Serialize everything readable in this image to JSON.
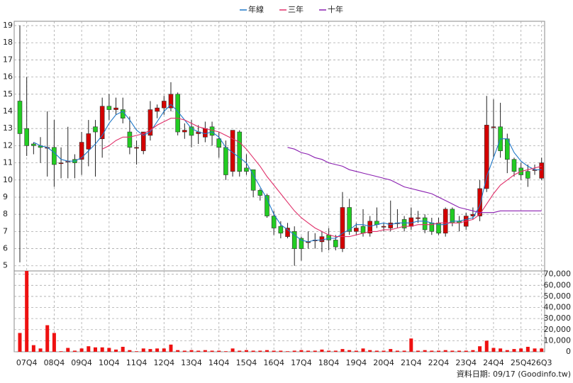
{
  "chart_data": {
    "type": "candlestick",
    "legend": "top",
    "grid": true,
    "up_color": "#d40000",
    "down_color": "#22cc22",
    "categories": [
      null,
      "07Q4",
      null,
      null,
      null,
      "08Q4",
      null,
      null,
      null,
      "09Q4",
      null,
      null,
      null,
      "10Q4",
      null,
      null,
      null,
      "11Q4",
      null,
      null,
      null,
      "12Q4",
      null,
      null,
      null,
      "13Q4",
      null,
      null,
      null,
      "14Q4",
      null,
      null,
      null,
      "15Q4",
      null,
      null,
      null,
      "16Q4",
      null,
      null,
      null,
      "17Q4",
      null,
      null,
      null,
      "18Q4",
      null,
      null,
      null,
      "19Q4",
      null,
      null,
      null,
      "20Q4",
      null,
      null,
      null,
      "21Q4",
      null,
      null,
      null,
      "22Q4",
      null,
      null,
      null,
      "23Q4",
      null,
      null,
      null,
      "24Q4",
      null,
      null,
      null,
      "25Q4",
      null,
      null,
      "26Q3"
    ],
    "open": [
      14.6,
      13.0,
      12.1,
      12.0,
      11.9,
      11.9,
      11.0,
      11.1,
      11.2,
      11.2,
      11.8,
      13.1,
      12.4,
      14.3,
      14.1,
      14.1,
      12.8,
      11.9,
      11.7,
      12.6,
      14.0,
      14.2,
      14.2,
      15.0,
      12.8,
      13.1,
      12.7,
      12.5,
      13.1,
      12.4,
      11.9,
      10.5,
      12.8,
      10.7,
      10.6,
      9.4,
      9.1,
      7.9,
      7.3,
      6.7,
      7.0,
      6.6,
      6.4,
      6.5,
      6.4,
      6.8,
      6.5,
      6.0,
      8.4,
      7.0,
      7.3,
      6.9,
      7.6,
      7.3,
      7.2,
      7.5,
      7.7,
      7.3,
      7.8,
      7.8,
      7.5,
      7.5,
      6.9,
      8.3,
      7.6,
      7.3,
      7.9,
      7.9,
      9.5,
      13.1,
      13.1,
      12.4,
      11.2,
      10.7,
      10.5,
      10.6,
      10.1
    ],
    "high": [
      19.0,
      16.0,
      12.2,
      12.5,
      14.0,
      13.5,
      11.9,
      13.1,
      11.5,
      12.8,
      13.5,
      13.5,
      14.8,
      15.0,
      14.8,
      14.8,
      13.7,
      12.3,
      12.8,
      14.6,
      14.4,
      14.9,
      15.7,
      15.1,
      13.3,
      13.5,
      13.2,
      13.4,
      13.4,
      12.8,
      12.3,
      12.9,
      12.9,
      11.5,
      10.6,
      9.5,
      9.2,
      8.2,
      7.6,
      7.5,
      7.3,
      6.7,
      7.0,
      6.9,
      7.0,
      7.2,
      6.8,
      9.3,
      8.9,
      7.5,
      8.3,
      7.9,
      8.4,
      7.5,
      8.8,
      8.3,
      7.9,
      8.4,
      8.2,
      8.0,
      7.8,
      7.8,
      8.4,
      8.4,
      7.9,
      8.1,
      8.4,
      10.0,
      14.9,
      14.7,
      14.5,
      12.7,
      11.3,
      11.0,
      10.9,
      10.9,
      11.3
    ],
    "low": [
      5.2,
      11.4,
      11.5,
      11.0,
      10.2,
      9.6,
      10.1,
      10.1,
      10.1,
      10.3,
      10.8,
      10.2,
      11.3,
      13.5,
      13.8,
      13.3,
      11.5,
      10.9,
      11.5,
      12.3,
      13.6,
      13.8,
      14.0,
      12.6,
      12.4,
      11.9,
      12.1,
      12.2,
      12.0,
      11.3,
      10.0,
      10.2,
      10.2,
      10.3,
      9.0,
      8.8,
      7.8,
      6.8,
      6.6,
      6.6,
      5.0,
      5.3,
      6.0,
      6.0,
      5.8,
      5.9,
      5.9,
      5.8,
      6.8,
      6.8,
      6.7,
      6.7,
      7.2,
      7.0,
      7.0,
      7.2,
      7.0,
      7.1,
      7.5,
      6.9,
      6.8,
      6.8,
      6.7,
      7.3,
      7.0,
      7.1,
      7.7,
      7.6,
      9.3,
      11.3,
      11.3,
      10.4,
      10.2,
      10.0,
      9.6,
      10.3,
      10.0
    ],
    "close": [
      12.7,
      12.0,
      12.0,
      11.9,
      11.9,
      10.9,
      11.0,
      11.1,
      11.0,
      12.2,
      12.7,
      12.8,
      14.3,
      14.1,
      14.2,
      13.6,
      11.9,
      11.9,
      12.8,
      14.1,
      14.2,
      14.6,
      15.0,
      12.8,
      12.9,
      12.6,
      12.8,
      13.0,
      12.6,
      11.9,
      10.3,
      12.9,
      10.5,
      10.5,
      9.4,
      9.1,
      7.9,
      7.2,
      6.9,
      7.2,
      6.0,
      6.0,
      6.4,
      6.5,
      6.7,
      6.5,
      6.1,
      8.4,
      7.0,
      7.2,
      6.9,
      7.6,
      7.4,
      7.3,
      7.5,
      7.5,
      7.2,
      7.8,
      7.8,
      7.1,
      7.0,
      6.9,
      8.3,
      7.5,
      7.5,
      7.9,
      8.0,
      9.5,
      13.2,
      13.1,
      11.7,
      11.2,
      10.5,
      10.3,
      10.1,
      10.6,
      11.0
    ],
    "series": [
      {
        "name": "年線",
        "color": "#1f78c8",
        "values": [
          null,
          null,
          12.2,
          12.0,
          11.9,
          11.6,
          11.2,
          11.1,
          11.1,
          11.3,
          11.7,
          12.1,
          12.6,
          13.3,
          13.8,
          14.0,
          13.5,
          12.9,
          12.6,
          12.8,
          13.4,
          14.0,
          14.4,
          14.0,
          13.5,
          13.0,
          12.8,
          12.7,
          12.8,
          12.5,
          11.9,
          11.6,
          11.3,
          11.0,
          10.3,
          9.6,
          8.9,
          8.0,
          7.4,
          7.1,
          6.8,
          6.5,
          6.4,
          6.5,
          6.5,
          6.6,
          6.6,
          6.9,
          7.1,
          7.4,
          7.4,
          7.3,
          7.4,
          7.5,
          7.4,
          7.5,
          7.5,
          7.5,
          7.6,
          7.6,
          7.5,
          7.4,
          7.4,
          7.6,
          7.6,
          7.7,
          7.8,
          8.5,
          10.2,
          11.3,
          12.4,
          12.4,
          11.6,
          11.1,
          10.8,
          10.6,
          10.6
        ]
      },
      {
        "name": "三年",
        "color": "#e0306a",
        "values": [
          null,
          null,
          null,
          null,
          null,
          null,
          null,
          null,
          null,
          null,
          null,
          null,
          11.8,
          12.0,
          12.3,
          12.5,
          12.5,
          12.6,
          12.7,
          12.9,
          13.2,
          13.4,
          13.6,
          13.6,
          13.5,
          13.3,
          13.1,
          13.0,
          12.9,
          12.8,
          12.6,
          12.4,
          12.2,
          11.8,
          11.3,
          10.8,
          10.2,
          9.7,
          9.2,
          8.7,
          8.2,
          7.8,
          7.5,
          7.2,
          7.0,
          6.8,
          6.7,
          6.7,
          6.7,
          6.8,
          6.9,
          7.0,
          7.0,
          7.1,
          7.1,
          7.2,
          7.3,
          7.3,
          7.4,
          7.4,
          7.4,
          7.5,
          7.5,
          7.5,
          7.5,
          7.6,
          7.7,
          8.0,
          8.6,
          9.2,
          9.7,
          10.0,
          10.3,
          10.5,
          10.6,
          10.7,
          10.8
        ]
      },
      {
        "name": "十年",
        "color": "#8a1fb0",
        "values": [
          null,
          null,
          null,
          null,
          null,
          null,
          null,
          null,
          null,
          null,
          null,
          null,
          null,
          null,
          null,
          null,
          null,
          null,
          null,
          null,
          null,
          null,
          null,
          null,
          null,
          null,
          null,
          null,
          null,
          null,
          null,
          null,
          null,
          null,
          null,
          null,
          null,
          null,
          null,
          11.9,
          11.8,
          11.6,
          11.5,
          11.3,
          11.2,
          11.0,
          10.9,
          10.8,
          10.6,
          10.5,
          10.4,
          10.3,
          10.2,
          10.1,
          10.0,
          9.8,
          9.6,
          9.5,
          9.4,
          9.3,
          9.2,
          9.0,
          8.8,
          8.6,
          8.4,
          8.3,
          8.2,
          8.1,
          8.1,
          8.1,
          8.2,
          8.2,
          8.2,
          8.2,
          8.2,
          8.2,
          8.2
        ]
      }
    ],
    "ylim": [
      4.7,
      19.25
    ],
    "yticks": [
      5,
      6,
      7,
      8,
      9,
      10,
      11,
      12,
      13,
      14,
      15,
      16,
      17,
      18,
      19
    ],
    "volume": {
      "color": "#ee1111",
      "values": [
        17000,
        73000,
        6000,
        3000,
        24000,
        17000,
        500,
        3500,
        1000,
        3000,
        5000,
        4000,
        4000,
        3500,
        2000,
        4500,
        1500,
        500,
        3000,
        2500,
        3000,
        3000,
        6500,
        1500,
        1000,
        1500,
        1000,
        1500,
        1000,
        1000,
        500,
        3000,
        1000,
        1500,
        1000,
        1000,
        1500,
        1000,
        1000,
        500,
        1000,
        1500,
        1000,
        1000,
        2000,
        1000,
        1000,
        2500,
        1500,
        1000,
        3000,
        1500,
        1000,
        1000,
        2500,
        1000,
        1000,
        12000,
        1000,
        1500,
        1000,
        1000,
        1500,
        1000,
        1000,
        1000,
        1500,
        5000,
        10000,
        3500,
        3000,
        1500,
        2500,
        3000,
        4500,
        3000,
        3000
      ],
      "ylim": [
        0,
        73000
      ],
      "yticks": [
        0,
        {
          "value": 10000,
          "label": "10,000"
        },
        {
          "value": 20000,
          "label": "20,000"
        },
        {
          "value": 30000,
          "label": "30,000"
        },
        {
          "value": 40000,
          "label": "40,000"
        },
        {
          "value": 50000,
          "label": "50,000"
        },
        {
          "value": 60000,
          "label": "60,000"
        },
        {
          "value": 70000,
          "label": "70,000"
        }
      ]
    },
    "footnote": "資料日期: 09/17 (Goodinfo.tw)"
  }
}
